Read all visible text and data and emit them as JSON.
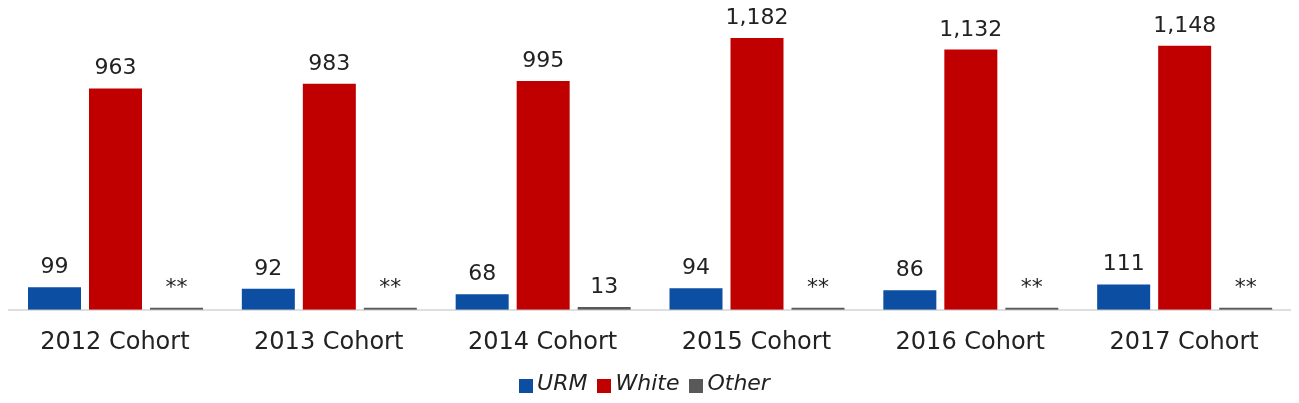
{
  "chart_data": {
    "type": "bar",
    "categories": [
      "2012 Cohort",
      "2013 Cohort",
      "2014 Cohort",
      "2015 Cohort",
      "2016 Cohort",
      "2017 Cohort"
    ],
    "legend": "bottom",
    "grid": false,
    "series": [
      {
        "name": "URM",
        "color": "#0b4ea2",
        "values": [
          99,
          92,
          68,
          94,
          86,
          111
        ],
        "value_labels": [
          "99",
          "92",
          "68",
          "94",
          "86",
          "111"
        ]
      },
      {
        "name": "White",
        "color": "#c00000",
        "values": [
          963,
          983,
          995,
          1182,
          1132,
          1148
        ],
        "value_labels": [
          "963",
          "983",
          "995",
          "1,182",
          "1,132",
          "1,148"
        ]
      },
      {
        "name": "Other",
        "color": "#595959",
        "values": [
          10,
          10,
          13,
          10,
          10,
          10
        ],
        "value_labels": [
          "**",
          "**",
          "13",
          "**",
          "**",
          "**"
        ]
      }
    ]
  }
}
